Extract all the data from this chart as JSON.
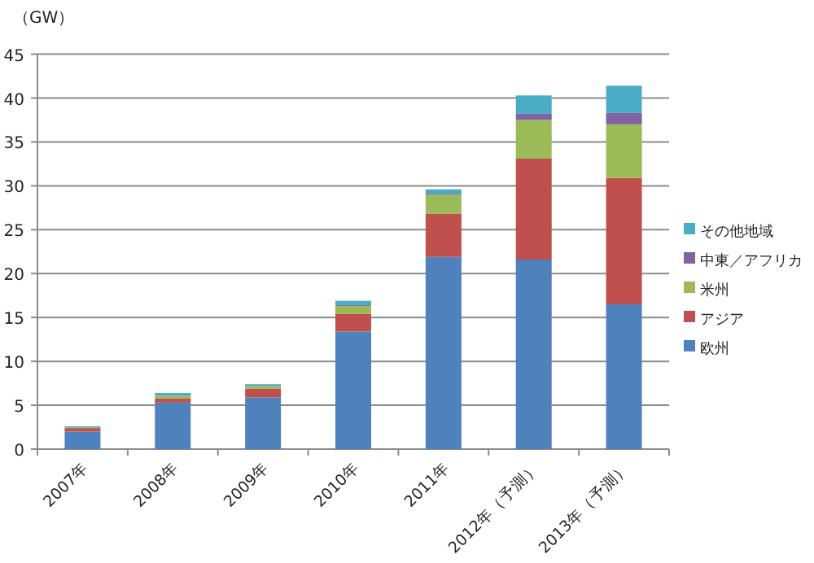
{
  "chart_data": {
    "type": "bar",
    "stacked": true,
    "ylabel": "（GW）",
    "categories": [
      "2007年",
      "2008年",
      "2009年",
      "2010年",
      "2011年",
      "2012年（予測）",
      "2013年（予測）"
    ],
    "series": [
      {
        "name": "欧州",
        "color": "#4f81bd",
        "values": [
          2.0,
          5.3,
          5.9,
          13.4,
          21.9,
          21.6,
          16.5
        ]
      },
      {
        "name": "アジア",
        "color": "#c0504d",
        "values": [
          0.4,
          0.5,
          1.0,
          2.0,
          4.9,
          11.5,
          14.4
        ]
      },
      {
        "name": "米州",
        "color": "#9bbb59",
        "values": [
          0.1,
          0.3,
          0.3,
          0.9,
          2.2,
          4.4,
          6.1
        ]
      },
      {
        "name": "中東／アフリカ",
        "color": "#8064a2",
        "values": [
          0,
          0,
          0,
          0.1,
          0.1,
          0.7,
          1.3
        ]
      },
      {
        "name": "その他地域",
        "color": "#4bacc6",
        "values": [
          0.1,
          0.3,
          0.2,
          0.5,
          0.5,
          2.1,
          3.1
        ]
      }
    ],
    "ylim": [
      0,
      45
    ],
    "yticks": [
      0,
      5,
      10,
      15,
      20,
      25,
      30,
      35,
      40,
      45
    ],
    "grid": "y",
    "legend": "right"
  }
}
